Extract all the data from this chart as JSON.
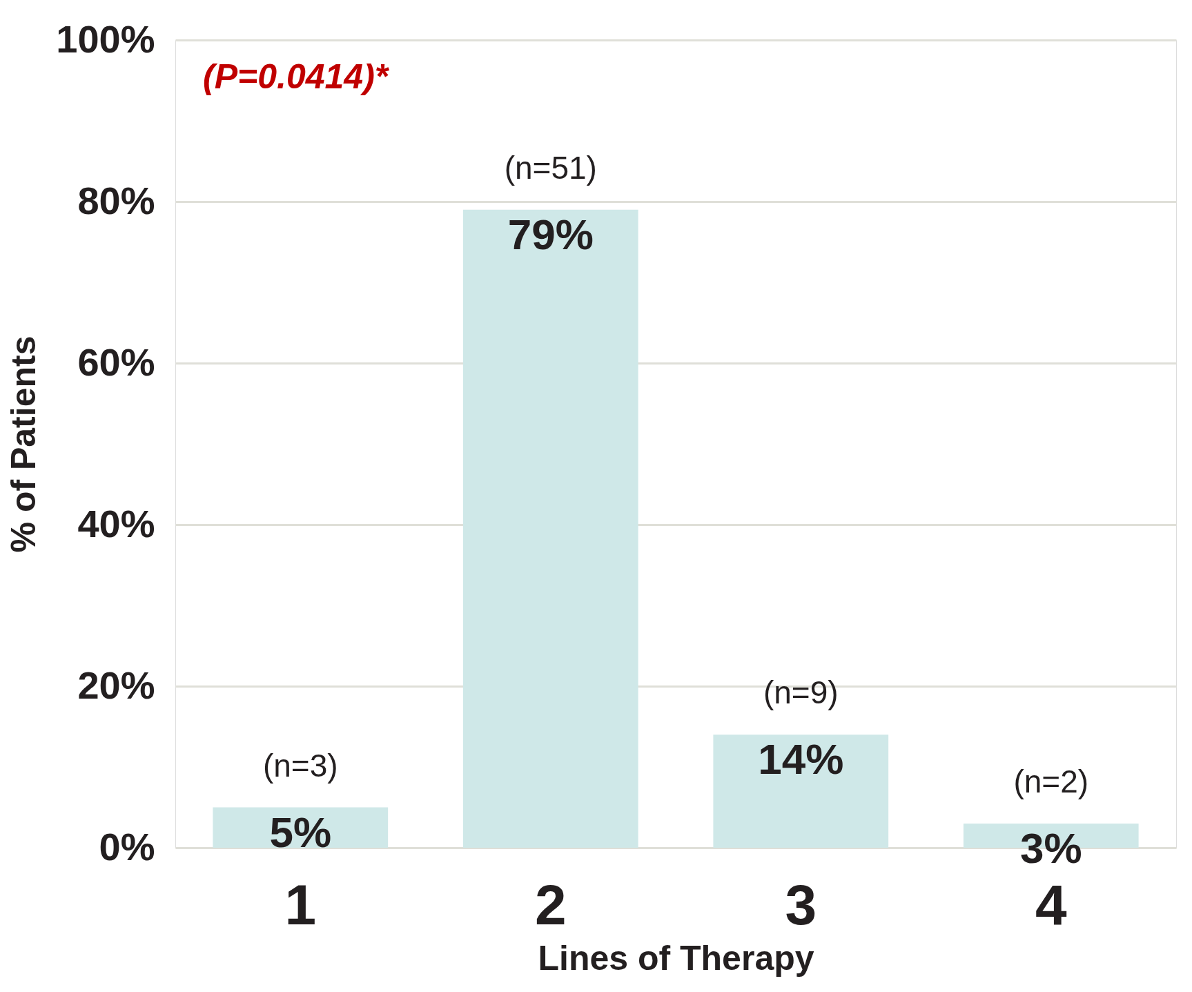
{
  "chart_data": {
    "type": "bar",
    "xlabel": "Lines of Therapy",
    "ylabel": "% of Patients",
    "categories": [
      "1",
      "2",
      "3",
      "4"
    ],
    "values": [
      5,
      79,
      14,
      3
    ],
    "value_labels": [
      "5%",
      "79%",
      "14%",
      "3%"
    ],
    "color": "#cfe8e8",
    "ylim": [
      0,
      100
    ],
    "yticks": [
      {
        "value": 0,
        "label": "0%"
      },
      {
        "value": 20,
        "label": "20%"
      },
      {
        "value": 40,
        "label": "40%"
      },
      {
        "value": 60,
        "label": "60%"
      },
      {
        "value": 80,
        "label": "80%"
      },
      {
        "value": 100,
        "label": "100%"
      }
    ],
    "grid": "y",
    "annotations": [
      "(P=0.0414)*",
      {
        "text": "(n=3)",
        "x": "1",
        "y": 5
      },
      {
        "text": "(n=51)",
        "x": "2",
        "y": 79
      },
      {
        "text": "(n=9)",
        "x": "3",
        "y": 14
      },
      {
        "text": "(n=2)",
        "x": "4",
        "y": 3
      }
    ]
  }
}
